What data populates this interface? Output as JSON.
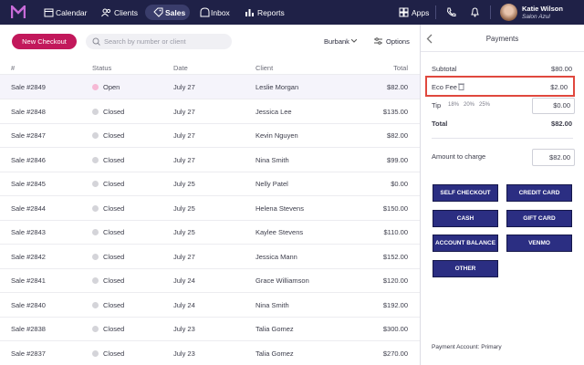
{
  "nav": {
    "items": [
      "Calendar",
      "Clients",
      "Sales",
      "Inbox",
      "Reports"
    ],
    "apps": "Apps",
    "user": {
      "name": "Katie Wilson",
      "business": "Salon Azul"
    }
  },
  "toolbar": {
    "new_checkout": "New Checkout",
    "search_placeholder": "Search by number or client",
    "location": "Burbank",
    "options": "Options"
  },
  "table": {
    "columns": [
      "#",
      "Status",
      "Date",
      "Client",
      "Total"
    ],
    "rows": [
      [
        "Sale #2849",
        "Open",
        "July 27",
        "Leslie Morgan",
        "$82.00"
      ],
      [
        "Sale #2848",
        "Closed",
        "July 27",
        "Jessica Lee",
        "$135.00"
      ],
      [
        "Sale #2847",
        "Closed",
        "July 27",
        "Kevin Nguyen",
        "$82.00"
      ],
      [
        "Sale #2846",
        "Closed",
        "July 27",
        "Nina Smith",
        "$99.00"
      ],
      [
        "Sale #2845",
        "Closed",
        "July 25",
        "Nelly Patel",
        "$0.00"
      ],
      [
        "Sale #2844",
        "Closed",
        "July 25",
        "Helena Stevens",
        "$150.00"
      ],
      [
        "Sale #2843",
        "Closed",
        "July 25",
        "Kaylee Stevens",
        "$110.00"
      ],
      [
        "Sale #2842",
        "Closed",
        "July 27",
        "Jessica Mann",
        "$152.00"
      ],
      [
        "Sale #2841",
        "Closed",
        "July 24",
        "Grace Williamson",
        "$120.00"
      ],
      [
        "Sale #2840",
        "Closed",
        "July 24",
        "Nina Smith",
        "$192.00"
      ],
      [
        "Sale #2838",
        "Closed",
        "July 23",
        "Talia Gomez",
        "$300.00"
      ],
      [
        "Sale #2837",
        "Closed",
        "July 23",
        "Talia Gomez",
        "$270.00"
      ]
    ]
  },
  "payments": {
    "title": "Payments",
    "subtotal": {
      "label": "Subtotal",
      "amount": "$80.00"
    },
    "eco_fee": {
      "label": "Eco Fee",
      "amount": "$2.00"
    },
    "tip": {
      "label": "Tip",
      "options": [
        "18%",
        "20%",
        "25%"
      ],
      "amount": "$0.00"
    },
    "total": {
      "label": "Total",
      "amount": "$82.00"
    },
    "amount_to_charge": {
      "label": "Amount to charge",
      "amount": "$82.00"
    },
    "methods": [
      "SELF CHECKOUT",
      "CREDIT CARD",
      "CASH",
      "GIFT CARD",
      "ACCOUNT BALANCE",
      "VENMO",
      "OTHER"
    ],
    "footer": "Payment Account: Primary"
  }
}
